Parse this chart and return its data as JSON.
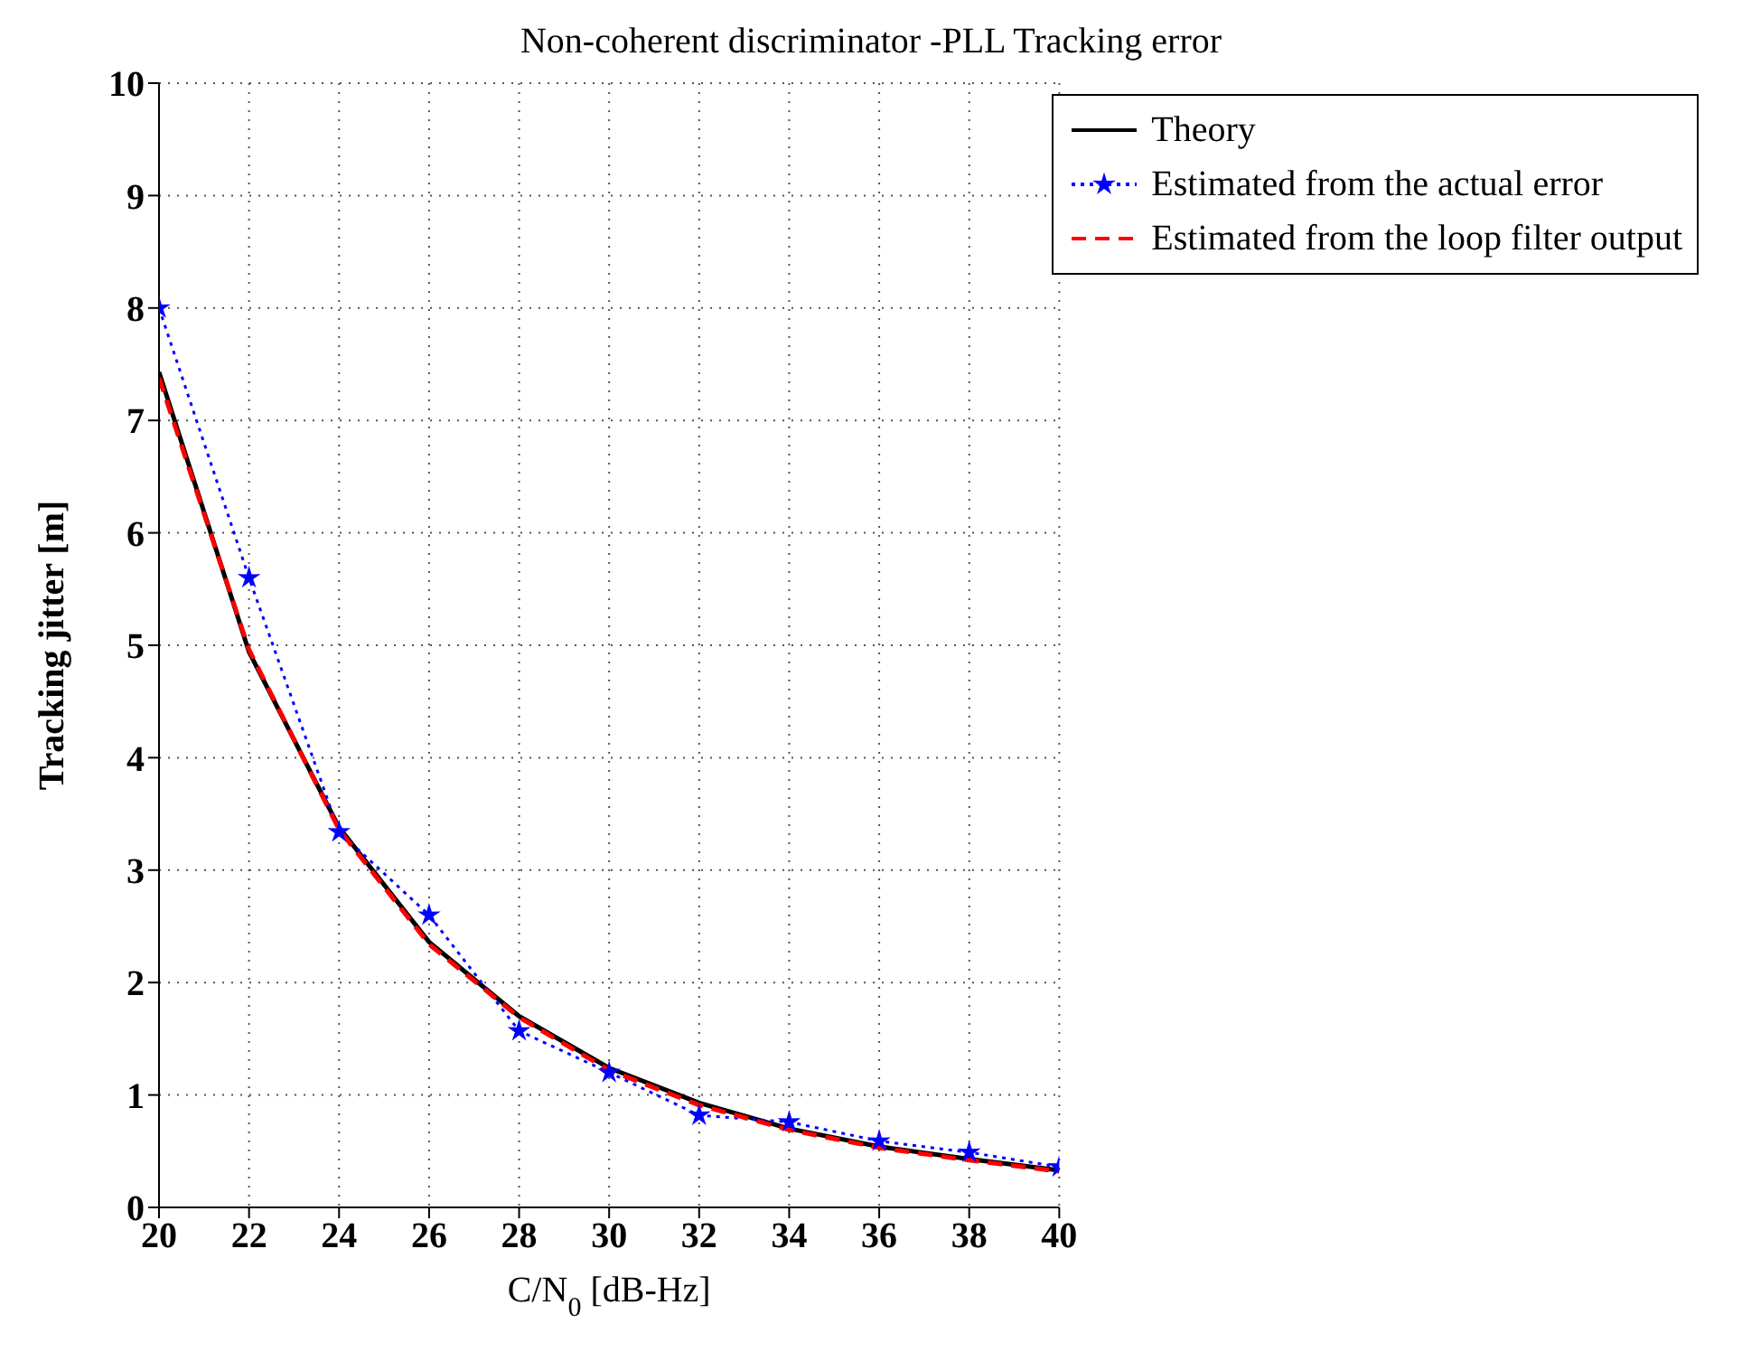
{
  "chart_data": {
    "type": "line",
    "title": "Non-coherent discriminator -PLL Tracking error",
    "xlabel": "C/N$_{0}$ [dB-Hz]",
    "ylabel": "Tracking jitter  [m]",
    "x": [
      20,
      22,
      24,
      26,
      28,
      30,
      32,
      34,
      36,
      38,
      40
    ],
    "xlim": [
      20,
      40
    ],
    "xticks": [
      20,
      22,
      24,
      26,
      28,
      30,
      32,
      34,
      36,
      38,
      40
    ],
    "ylim": [
      0,
      10
    ],
    "yticks": [
      0,
      1,
      2,
      3,
      4,
      5,
      6,
      7,
      8,
      9,
      10
    ],
    "grid": true,
    "legend": "top right",
    "series": [
      {
        "name": "Theory",
        "color": "#000000",
        "line_style": "solid",
        "marker": "none",
        "values": [
          7.43,
          4.94,
          3.38,
          2.36,
          1.7,
          1.24,
          0.93,
          0.7,
          0.54,
          0.43,
          0.33
        ]
      },
      {
        "name": "Estimated from the actual error",
        "color": "#0000ff",
        "line_style": "dotted",
        "marker": "star",
        "values": [
          8.0,
          5.6,
          3.34,
          2.6,
          1.57,
          1.2,
          0.82,
          0.76,
          0.59,
          0.49,
          0.36
        ]
      },
      {
        "name": "Estimated from the loop filter output",
        "color": "#ff0000",
        "line_style": "dashed",
        "marker": "none",
        "values": [
          7.38,
          4.96,
          3.36,
          2.34,
          1.69,
          1.22,
          0.91,
          0.69,
          0.53,
          0.42,
          0.32
        ]
      }
    ]
  }
}
